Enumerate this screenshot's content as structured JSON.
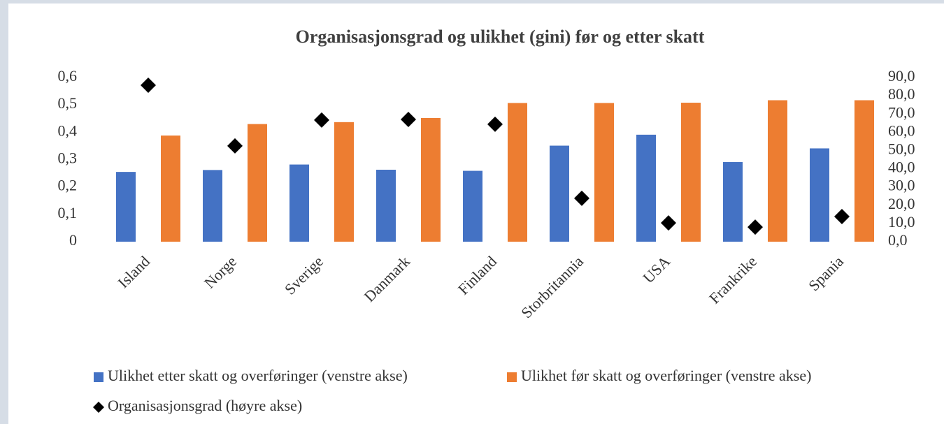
{
  "chart_data": {
    "type": "bar",
    "title": "Organisasjonsgrad og ulikhet (gini) før og etter skatt",
    "categories": [
      "Island",
      "Norge",
      "Sverige",
      "Danmark",
      "Finland",
      "Storbritannia",
      "USA",
      "Frankrike",
      "Spania"
    ],
    "series": [
      {
        "name": "Ulikhet etter skatt og overføringer (venstre akse)",
        "color": "#4472c4",
        "type": "bar",
        "values": [
          0.255,
          0.262,
          0.282,
          0.263,
          0.259,
          0.351,
          0.391,
          0.291,
          0.341
        ]
      },
      {
        "name": "Ulikhet før skatt og overføringer (venstre akse)",
        "color": "#ed7d31",
        "type": "bar",
        "values": [
          0.388,
          0.43,
          0.437,
          0.452,
          0.507,
          0.507,
          0.508,
          0.517,
          0.517
        ]
      },
      {
        "name": "Organisasjonsgrad (høyre akse)",
        "color": "#000000",
        "type": "scatter",
        "axis": "y2",
        "values": [
          85.8,
          52.5,
          66.7,
          67.0,
          64.4,
          23.8,
          10.3,
          8.0,
          13.8
        ]
      }
    ],
    "ylim": [
      0,
      0.6
    ],
    "yticks": [
      0,
      {
        "value": 0.1,
        "label": "0,1"
      },
      {
        "value": 0.2,
        "label": "0,2"
      },
      {
        "value": 0.3,
        "label": "0,3"
      },
      {
        "value": 0.4,
        "label": "0,4"
      },
      {
        "value": 0.5,
        "label": "0,5"
      },
      {
        "value": 0.6,
        "label": "0,6"
      }
    ],
    "y2lim": [
      0,
      90
    ],
    "y2ticks": [
      {
        "value": 0,
        "label": "0,0"
      },
      {
        "value": 10,
        "label": "10,0"
      },
      {
        "value": 20,
        "label": "20,0"
      },
      {
        "value": 30,
        "label": "30,0"
      },
      {
        "value": 40,
        "label": "40,0"
      },
      {
        "value": 50,
        "label": "50,0"
      },
      {
        "value": 60,
        "label": "60,0"
      },
      {
        "value": 70,
        "label": "70,0"
      },
      {
        "value": 80,
        "label": "80,0"
      },
      {
        "value": 90,
        "label": "90,0"
      }
    ],
    "grid": false,
    "legend": "bottom"
  }
}
